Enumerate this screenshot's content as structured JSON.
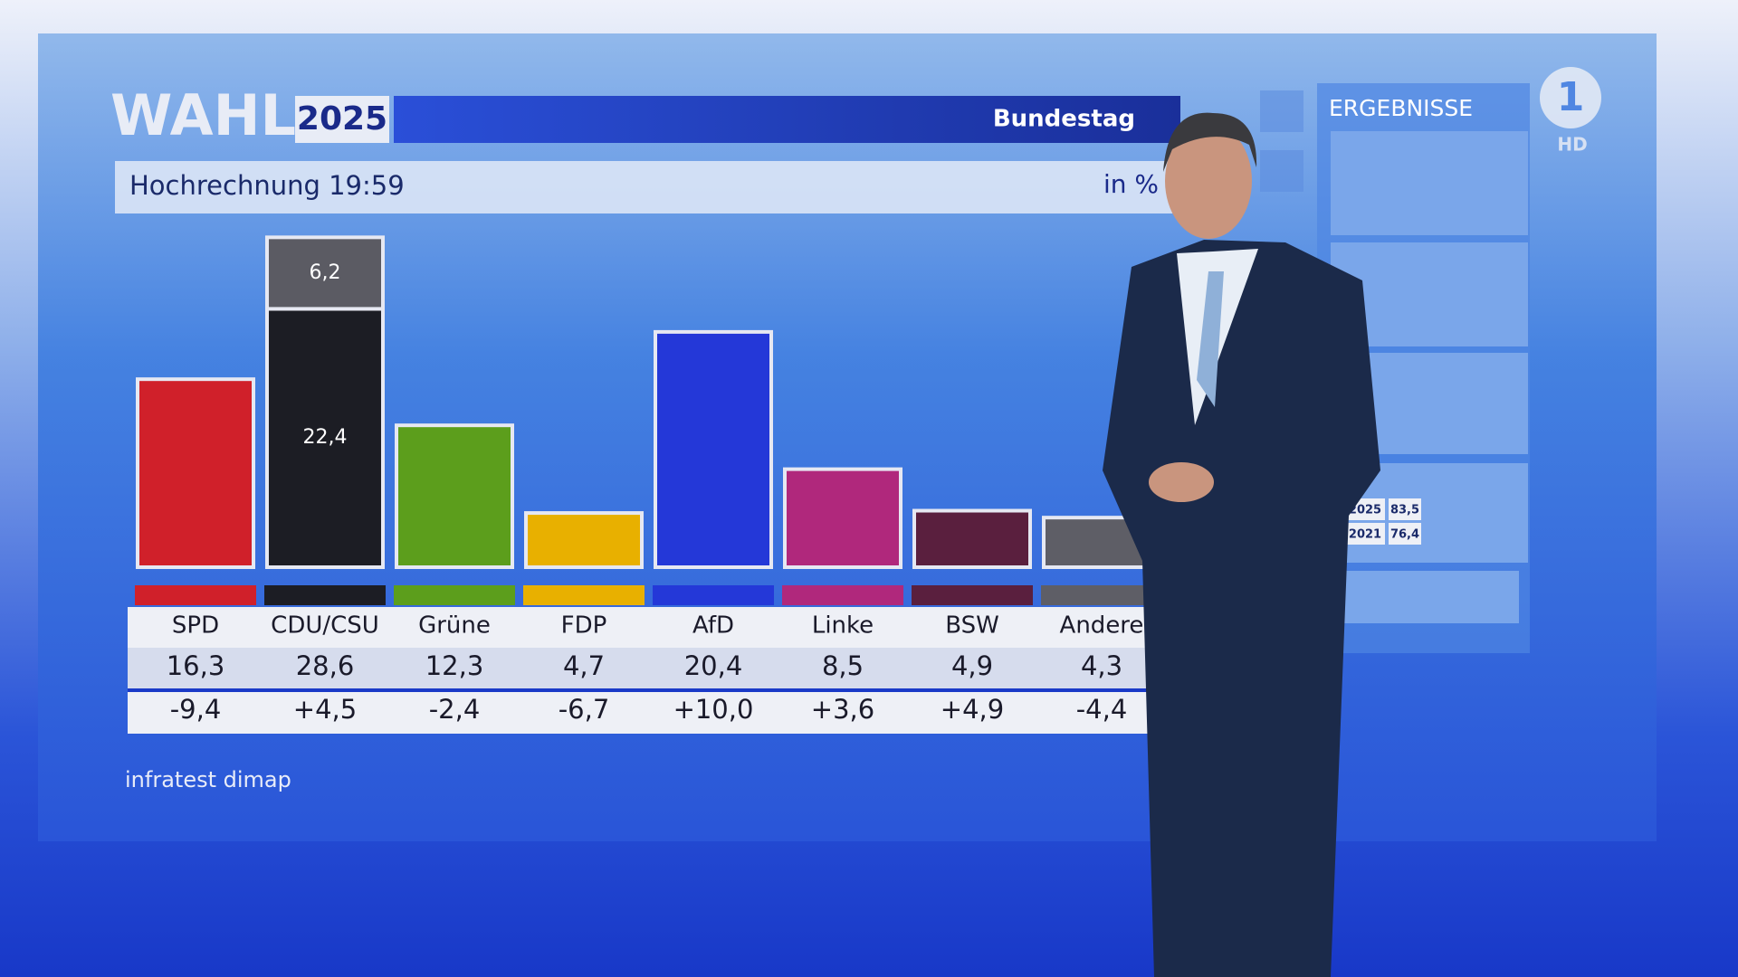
{
  "header": {
    "logo": "WAHL",
    "year": "2025",
    "chamber": "Bundestag"
  },
  "chart_data": {
    "type": "bar",
    "title": "Hochrechnung 19:59",
    "unit": "in %",
    "source": "infratest dimap",
    "categories": [
      "SPD",
      "CDU/CSU",
      "Grüne",
      "FDP",
      "AfD",
      "Linke",
      "BSW",
      "Andere"
    ],
    "values": [
      16.3,
      28.6,
      12.3,
      4.7,
      20.4,
      8.5,
      4.9,
      4.3
    ],
    "value_labels": [
      "16,3",
      "28,6",
      "12,3",
      "4,7",
      "20,4",
      "8,5",
      "4,9",
      "4,3"
    ],
    "colors": [
      "#d0202a",
      "#1c1d24",
      "#5c9e1c",
      "#e8b000",
      "#2438d8",
      "#b0287c",
      "#5a1f3e",
      "#5e5e66"
    ],
    "segments": [
      null,
      [
        22.4,
        6.2
      ],
      null,
      null,
      null,
      null,
      null,
      null
    ],
    "segment_labels": [
      null,
      [
        "22,4",
        "6,2"
      ],
      null,
      null,
      null,
      null,
      null,
      null
    ],
    "segment_colors": [
      null,
      [
        "#1c1d24",
        "#5b5b63"
      ],
      null,
      null,
      null,
      null,
      null,
      null
    ],
    "changes": [
      -9.4,
      4.5,
      -2.4,
      -6.7,
      10.0,
      3.6,
      4.9,
      -4.4
    ],
    "change_labels": [
      "-9,4",
      "+4,5",
      "-2,4",
      "-6,7",
      "+10,0",
      "+3,6",
      "+4,9",
      "-4,4"
    ]
  },
  "sidebar": {
    "title": "ERGEBNISSE",
    "turnout": [
      {
        "year": "2025",
        "value": "83,5"
      },
      {
        "year": "2021",
        "value": "76,4"
      }
    ]
  },
  "channel": {
    "logo": "1",
    "quality": "HD"
  }
}
